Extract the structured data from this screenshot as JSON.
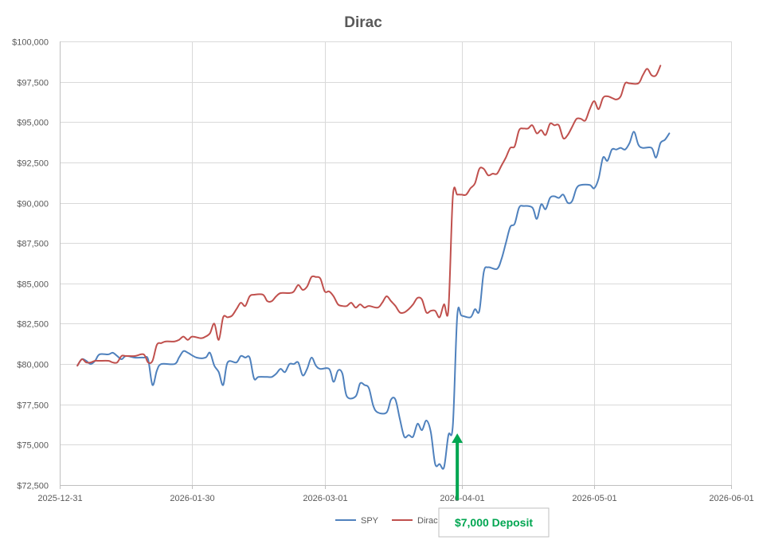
{
  "chart_data": {
    "type": "line",
    "title": "Dirac",
    "xlabel": "",
    "ylabel": "",
    "x_ticks": [
      "2025-12-31",
      "2026-01-30",
      "2026-03-01",
      "2026-04-01",
      "2026-05-01",
      "2026-06-01"
    ],
    "y_ticks": [
      "$72,500",
      "$75,000",
      "$77,500",
      "$80,000",
      "$82,500",
      "$85,000",
      "$87,500",
      "$90,000",
      "$92,500",
      "$95,000",
      "$97,500",
      "$100,000"
    ],
    "xlim": [
      "2025-12-31",
      "2026-06-01"
    ],
    "ylim": [
      72500,
      100000
    ],
    "grid": true,
    "legend_position": "bottom",
    "colors": {
      "SPY": "#4f81bd",
      "Dirac": "#c0504d",
      "annotation": "#00a651",
      "grid": "#d9d9d9"
    },
    "annotation": {
      "text": "$7,000 Deposit",
      "x": "2026-03-31",
      "y": 75700
    },
    "series": [
      {
        "name": "SPY",
        "points": [
          [
            "2026-01-04",
            79900
          ],
          [
            "2026-01-05",
            80300
          ],
          [
            "2026-01-06",
            80200
          ],
          [
            "2026-01-07",
            80000
          ],
          [
            "2026-01-08",
            80200
          ],
          [
            "2026-01-09",
            80600
          ],
          [
            "2026-01-11",
            80600
          ],
          [
            "2026-01-12",
            80700
          ],
          [
            "2026-01-13",
            80500
          ],
          [
            "2026-01-14",
            80300
          ],
          [
            "2026-01-15",
            80500
          ],
          [
            "2026-01-17",
            80400
          ],
          [
            "2026-01-19",
            80400
          ],
          [
            "2026-01-20",
            80300
          ],
          [
            "2026-01-21",
            78700
          ],
          [
            "2026-01-22",
            79600
          ],
          [
            "2026-01-23",
            80000
          ],
          [
            "2026-01-26",
            80000
          ],
          [
            "2026-01-27",
            80400
          ],
          [
            "2026-01-28",
            80800
          ],
          [
            "2026-01-29",
            80700
          ],
          [
            "2026-01-31",
            80400
          ],
          [
            "2026-02-02",
            80400
          ],
          [
            "2026-02-03",
            80700
          ],
          [
            "2026-02-04",
            79900
          ],
          [
            "2026-02-05",
            79500
          ],
          [
            "2026-02-06",
            78700
          ],
          [
            "2026-02-07",
            80100
          ],
          [
            "2026-02-09",
            80100
          ],
          [
            "2026-02-10",
            80500
          ],
          [
            "2026-02-11",
            80400
          ],
          [
            "2026-02-12",
            80400
          ],
          [
            "2026-02-13",
            79100
          ],
          [
            "2026-02-14",
            79200
          ],
          [
            "2026-02-16",
            79200
          ],
          [
            "2026-02-17",
            79200
          ],
          [
            "2026-02-18",
            79400
          ],
          [
            "2026-02-19",
            79700
          ],
          [
            "2026-02-20",
            79500
          ],
          [
            "2026-02-21",
            80000
          ],
          [
            "2026-02-22",
            80000
          ],
          [
            "2026-02-23",
            80100
          ],
          [
            "2026-02-24",
            79300
          ],
          [
            "2026-02-25",
            79700
          ],
          [
            "2026-02-26",
            80400
          ],
          [
            "2026-02-27",
            79900
          ],
          [
            "2026-02-28",
            79700
          ],
          [
            "2026-03-02",
            79700
          ],
          [
            "2026-03-03",
            78900
          ],
          [
            "2026-03-04",
            79600
          ],
          [
            "2026-03-05",
            79400
          ],
          [
            "2026-03-06",
            78000
          ],
          [
            "2026-03-08",
            78000
          ],
          [
            "2026-03-09",
            78800
          ],
          [
            "2026-03-10",
            78700
          ],
          [
            "2026-03-11",
            78500
          ],
          [
            "2026-03-12",
            77400
          ],
          [
            "2026-03-13",
            77000
          ],
          [
            "2026-03-15",
            77000
          ],
          [
            "2026-03-16",
            77800
          ],
          [
            "2026-03-17",
            77800
          ],
          [
            "2026-03-18",
            76600
          ],
          [
            "2026-03-19",
            75500
          ],
          [
            "2026-03-20",
            75600
          ],
          [
            "2026-03-21",
            75500
          ],
          [
            "2026-03-22",
            76300
          ],
          [
            "2026-03-23",
            75900
          ],
          [
            "2026-03-24",
            76500
          ],
          [
            "2026-03-25",
            75800
          ],
          [
            "2026-03-26",
            73800
          ],
          [
            "2026-03-27",
            73800
          ],
          [
            "2026-03-28",
            73600
          ],
          [
            "2026-03-29",
            75600
          ],
          [
            "2026-03-30",
            76200
          ],
          [
            "2026-03-31",
            83000
          ],
          [
            "2026-04-01",
            83000
          ],
          [
            "2026-04-03",
            82900
          ],
          [
            "2026-04-04",
            83400
          ],
          [
            "2026-04-05",
            83300
          ],
          [
            "2026-04-06",
            85700
          ],
          [
            "2026-04-07",
            86000
          ],
          [
            "2026-04-09",
            85900
          ],
          [
            "2026-04-10",
            86500
          ],
          [
            "2026-04-11",
            87500
          ],
          [
            "2026-04-12",
            88500
          ],
          [
            "2026-04-13",
            88700
          ],
          [
            "2026-04-14",
            89700
          ],
          [
            "2026-04-15",
            89800
          ],
          [
            "2026-04-17",
            89700
          ],
          [
            "2026-04-18",
            89000
          ],
          [
            "2026-04-19",
            89900
          ],
          [
            "2026-04-20",
            89600
          ],
          [
            "2026-04-21",
            90300
          ],
          [
            "2026-04-22",
            90400
          ],
          [
            "2026-04-23",
            90300
          ],
          [
            "2026-04-24",
            90500
          ],
          [
            "2026-04-25",
            90000
          ],
          [
            "2026-04-26",
            90100
          ],
          [
            "2026-04-27",
            90900
          ],
          [
            "2026-04-28",
            91100
          ],
          [
            "2026-04-30",
            91100
          ],
          [
            "2026-05-01",
            90900
          ],
          [
            "2026-05-02",
            91500
          ],
          [
            "2026-05-03",
            92800
          ],
          [
            "2026-05-04",
            92600
          ],
          [
            "2026-05-05",
            93300
          ],
          [
            "2026-05-06",
            93300
          ],
          [
            "2026-05-07",
            93400
          ],
          [
            "2026-05-08",
            93300
          ],
          [
            "2026-05-09",
            93700
          ],
          [
            "2026-05-10",
            94400
          ],
          [
            "2026-05-11",
            93600
          ],
          [
            "2026-05-12",
            93400
          ],
          [
            "2026-05-14",
            93400
          ],
          [
            "2026-05-15",
            92800
          ],
          [
            "2026-05-16",
            93700
          ],
          [
            "2026-05-17",
            93900
          ],
          [
            "2026-05-18",
            94300
          ]
        ]
      },
      {
        "name": "Dirac",
        "points": [
          [
            "2026-01-04",
            79900
          ],
          [
            "2026-01-05",
            80300
          ],
          [
            "2026-01-06",
            80100
          ],
          [
            "2026-01-07",
            80100
          ],
          [
            "2026-01-08",
            80200
          ],
          [
            "2026-01-09",
            80200
          ],
          [
            "2026-01-11",
            80200
          ],
          [
            "2026-01-12",
            80100
          ],
          [
            "2026-01-13",
            80100
          ],
          [
            "2026-01-14",
            80500
          ],
          [
            "2026-01-15",
            80500
          ],
          [
            "2026-01-17",
            80500
          ],
          [
            "2026-01-19",
            80600
          ],
          [
            "2026-01-20",
            80100
          ],
          [
            "2026-01-21",
            80200
          ],
          [
            "2026-01-22",
            81200
          ],
          [
            "2026-01-23",
            81300
          ],
          [
            "2026-01-24",
            81400
          ],
          [
            "2026-01-26",
            81400
          ],
          [
            "2026-01-27",
            81500
          ],
          [
            "2026-01-28",
            81700
          ],
          [
            "2026-01-29",
            81500
          ],
          [
            "2026-01-30",
            81700
          ],
          [
            "2026-02-01",
            81600
          ],
          [
            "2026-02-02",
            81700
          ],
          [
            "2026-02-03",
            81900
          ],
          [
            "2026-02-04",
            82500
          ],
          [
            "2026-02-05",
            81500
          ],
          [
            "2026-02-06",
            82900
          ],
          [
            "2026-02-07",
            82900
          ],
          [
            "2026-02-08",
            83000
          ],
          [
            "2026-02-09",
            83400
          ],
          [
            "2026-02-10",
            83800
          ],
          [
            "2026-02-11",
            83600
          ],
          [
            "2026-02-12",
            84200
          ],
          [
            "2026-02-13",
            84300
          ],
          [
            "2026-02-15",
            84300
          ],
          [
            "2026-02-16",
            83900
          ],
          [
            "2026-02-17",
            83900
          ],
          [
            "2026-02-18",
            84200
          ],
          [
            "2026-02-19",
            84400
          ],
          [
            "2026-02-21",
            84400
          ],
          [
            "2026-02-22",
            84500
          ],
          [
            "2026-02-23",
            84900
          ],
          [
            "2026-02-24",
            84600
          ],
          [
            "2026-02-25",
            84800
          ],
          [
            "2026-02-26",
            85400
          ],
          [
            "2026-02-27",
            85400
          ],
          [
            "2026-02-28",
            85300
          ],
          [
            "2026-03-01",
            84500
          ],
          [
            "2026-03-02",
            84500
          ],
          [
            "2026-03-03",
            84200
          ],
          [
            "2026-03-04",
            83700
          ],
          [
            "2026-03-05",
            83600
          ],
          [
            "2026-03-06",
            83600
          ],
          [
            "2026-03-07",
            83800
          ],
          [
            "2026-03-08",
            83500
          ],
          [
            "2026-03-09",
            83700
          ],
          [
            "2026-03-10",
            83500
          ],
          [
            "2026-03-11",
            83600
          ],
          [
            "2026-03-13",
            83500
          ],
          [
            "2026-03-14",
            83800
          ],
          [
            "2026-03-15",
            84200
          ],
          [
            "2026-03-16",
            83900
          ],
          [
            "2026-03-17",
            83600
          ],
          [
            "2026-03-18",
            83200
          ],
          [
            "2026-03-19",
            83200
          ],
          [
            "2026-03-20",
            83400
          ],
          [
            "2026-03-21",
            83700
          ],
          [
            "2026-03-22",
            84100
          ],
          [
            "2026-03-23",
            84000
          ],
          [
            "2026-03-24",
            83200
          ],
          [
            "2026-03-25",
            83300
          ],
          [
            "2026-03-26",
            83300
          ],
          [
            "2026-03-27",
            82900
          ],
          [
            "2026-03-28",
            83700
          ],
          [
            "2026-03-29",
            83400
          ],
          [
            "2026-03-30",
            90400
          ],
          [
            "2026-03-31",
            90500
          ],
          [
            "2026-04-01",
            90500
          ],
          [
            "2026-04-02",
            90500
          ],
          [
            "2026-04-03",
            90900
          ],
          [
            "2026-04-04",
            91200
          ],
          [
            "2026-04-05",
            92100
          ],
          [
            "2026-04-06",
            92100
          ],
          [
            "2026-04-07",
            91700
          ],
          [
            "2026-04-08",
            91800
          ],
          [
            "2026-04-09",
            91800
          ],
          [
            "2026-04-10",
            92300
          ],
          [
            "2026-04-11",
            92800
          ],
          [
            "2026-04-12",
            93400
          ],
          [
            "2026-04-13",
            93500
          ],
          [
            "2026-04-14",
            94500
          ],
          [
            "2026-04-15",
            94600
          ],
          [
            "2026-04-16",
            94600
          ],
          [
            "2026-04-17",
            94800
          ],
          [
            "2026-04-18",
            94300
          ],
          [
            "2026-04-19",
            94500
          ],
          [
            "2026-04-20",
            94200
          ],
          [
            "2026-04-21",
            94900
          ],
          [
            "2026-04-22",
            94800
          ],
          [
            "2026-04-23",
            94800
          ],
          [
            "2026-04-24",
            94000
          ],
          [
            "2026-04-25",
            94200
          ],
          [
            "2026-04-26",
            94700
          ],
          [
            "2026-04-27",
            95200
          ],
          [
            "2026-04-28",
            95200
          ],
          [
            "2026-04-29",
            95100
          ],
          [
            "2026-04-30",
            95800
          ],
          [
            "2026-05-01",
            96300
          ],
          [
            "2026-05-02",
            95800
          ],
          [
            "2026-05-03",
            96500
          ],
          [
            "2026-05-04",
            96600
          ],
          [
            "2026-05-05",
            96500
          ],
          [
            "2026-05-06",
            96400
          ],
          [
            "2026-05-07",
            96600
          ],
          [
            "2026-05-08",
            97400
          ],
          [
            "2026-05-09",
            97400
          ],
          [
            "2026-05-11",
            97400
          ],
          [
            "2026-05-12",
            97900
          ],
          [
            "2026-05-13",
            98300
          ],
          [
            "2026-05-14",
            97900
          ],
          [
            "2026-05-15",
            97900
          ],
          [
            "2026-05-16",
            98500
          ]
        ]
      }
    ]
  }
}
